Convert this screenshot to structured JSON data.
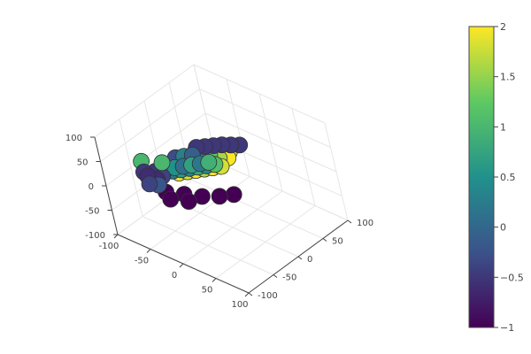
{
  "chart_data": {
    "type": "scatter3d",
    "title": "",
    "axes": {
      "x": {
        "range": [
          -100,
          100
        ],
        "ticks": [
          -100,
          -50,
          0,
          50,
          100
        ],
        "tick_labels": [
          "-100",
          "-50",
          "0",
          "50",
          "100"
        ],
        "label": ""
      },
      "y": {
        "range": [
          -100,
          100
        ],
        "ticks": [
          -100,
          -50,
          0,
          50,
          100
        ],
        "tick_labels": [
          "-100",
          "-50",
          "0",
          "50",
          "100"
        ],
        "label": ""
      },
      "z": {
        "range": [
          -100,
          100
        ],
        "ticks": [
          -100,
          -50,
          0,
          50,
          100
        ],
        "tick_labels": [
          "-100",
          "-50",
          "0",
          "50",
          "100"
        ],
        "label": ""
      }
    },
    "grid": true,
    "colorscale": "viridis",
    "colorscale_stops": [
      "#440154",
      "#3b528b",
      "#21918c",
      "#5ec962",
      "#fde725"
    ],
    "colorbar": {
      "range": [
        -1,
        2
      ],
      "ticks": [
        2,
        1.5,
        1,
        0.5,
        0,
        -0.5,
        -1
      ],
      "tick_labels": [
        "2",
        "1.5",
        "1",
        "0.5",
        "0",
        "−0.5",
        "−1"
      ]
    },
    "marker_outline": "#333333",
    "shape": "cat-like figure made of markers",
    "points": [
      {
        "x": -20,
        "y": -10,
        "z": 60,
        "c": -0.5
      },
      {
        "x": -10,
        "y": -5,
        "z": 64,
        "c": -0.5
      },
      {
        "x": 0,
        "y": 0,
        "z": 68,
        "c": -0.5
      },
      {
        "x": 10,
        "y": 5,
        "z": 72,
        "c": -0.5
      },
      {
        "x": 20,
        "y": 10,
        "z": 74,
        "c": -0.5
      },
      {
        "x": 30,
        "y": 15,
        "z": 76,
        "c": -0.5
      },
      {
        "x": -40,
        "y": -30,
        "z": 10,
        "c": 2
      },
      {
        "x": -30,
        "y": -25,
        "z": 15,
        "c": 1.8
      },
      {
        "x": -20,
        "y": -20,
        "z": 20,
        "c": 2
      },
      {
        "x": -10,
        "y": -15,
        "z": 25,
        "c": 1.6
      },
      {
        "x": 0,
        "y": -10,
        "z": 30,
        "c": 2
      },
      {
        "x": 10,
        "y": -5,
        "z": 35,
        "c": 1.8
      },
      {
        "x": -35,
        "y": -20,
        "z": 25,
        "c": 1.5
      },
      {
        "x": -25,
        "y": -15,
        "z": 30,
        "c": 2
      },
      {
        "x": -15,
        "y": -10,
        "z": 35,
        "c": 1.7
      },
      {
        "x": -5,
        "y": -5,
        "z": 40,
        "c": 2
      },
      {
        "x": 5,
        "y": 0,
        "z": 45,
        "c": 1.6
      },
      {
        "x": 15,
        "y": 5,
        "z": 48,
        "c": 2
      },
      {
        "x": -45,
        "y": -35,
        "z": 15,
        "c": 0.2
      },
      {
        "x": -35,
        "y": -30,
        "z": 20,
        "c": 0.6
      },
      {
        "x": -25,
        "y": -25,
        "z": 25,
        "c": 0.3
      },
      {
        "x": -15,
        "y": -20,
        "z": 30,
        "c": 0.8
      },
      {
        "x": -5,
        "y": -15,
        "z": 35,
        "c": 0.4
      },
      {
        "x": 5,
        "y": -10,
        "z": 40,
        "c": 1.1
      },
      {
        "x": -50,
        "y": -40,
        "z": 20,
        "c": 0
      },
      {
        "x": -40,
        "y": -35,
        "z": 25,
        "c": 0.5
      },
      {
        "x": -30,
        "y": -30,
        "z": 30,
        "c": 0.1
      },
      {
        "x": -20,
        "y": -25,
        "z": 35,
        "c": 0.7
      },
      {
        "x": -10,
        "y": -20,
        "z": 40,
        "c": 0.2
      },
      {
        "x": 0,
        "y": -15,
        "z": 45,
        "c": 0.9
      },
      {
        "x": -45,
        "y": -25,
        "z": 35,
        "c": -0.3
      },
      {
        "x": -35,
        "y": -20,
        "z": 40,
        "c": 0.3
      },
      {
        "x": -25,
        "y": -15,
        "z": 45,
        "c": -0.1
      },
      {
        "x": -15,
        "y": -10,
        "z": 48,
        "c": 0.6
      },
      {
        "x": -5,
        "y": -5,
        "z": 50,
        "c": 1.2
      },
      {
        "x": -30,
        "y": -5,
        "z": 40,
        "c": 1.9
      },
      {
        "x": -20,
        "y": 0,
        "z": 45,
        "c": 2
      },
      {
        "x": -10,
        "y": 5,
        "z": 48,
        "c": 1.8
      },
      {
        "x": 0,
        "y": 10,
        "z": 50,
        "c": 2
      },
      {
        "x": 10,
        "y": 15,
        "z": 50,
        "c": 1.7
      },
      {
        "x": -60,
        "y": -50,
        "z": 0,
        "c": -0.6
      },
      {
        "x": -55,
        "y": -45,
        "z": 5,
        "c": -0.4
      },
      {
        "x": -65,
        "y": -45,
        "z": 10,
        "c": -0.5
      },
      {
        "x": -60,
        "y": -40,
        "z": 15,
        "c": -0.3
      },
      {
        "x": -70,
        "y": -55,
        "z": 5,
        "c": -0.6
      },
      {
        "x": -55,
        "y": -55,
        "z": -5,
        "c": -0.2
      },
      {
        "x": -65,
        "y": -60,
        "z": -5,
        "c": -0.4
      },
      {
        "x": -75,
        "y": -55,
        "z": 10,
        "c": -0.5
      },
      {
        "x": -80,
        "y": -50,
        "z": 25,
        "c": 1.0
      },
      {
        "x": -55,
        "y": -40,
        "z": 30,
        "c": 1.0
      },
      {
        "x": -50,
        "y": -50,
        "z": -20,
        "c": -1
      },
      {
        "x": -30,
        "y": -40,
        "z": -20,
        "c": -1
      },
      {
        "x": -10,
        "y": -30,
        "z": -20,
        "c": -1
      },
      {
        "x": 10,
        "y": -20,
        "z": -15,
        "c": -1
      },
      {
        "x": 25,
        "y": -10,
        "z": -10,
        "c": -1
      },
      {
        "x": -40,
        "y": -55,
        "z": -25,
        "c": -1
      },
      {
        "x": -20,
        "y": -45,
        "z": -25,
        "c": -1
      }
    ]
  }
}
